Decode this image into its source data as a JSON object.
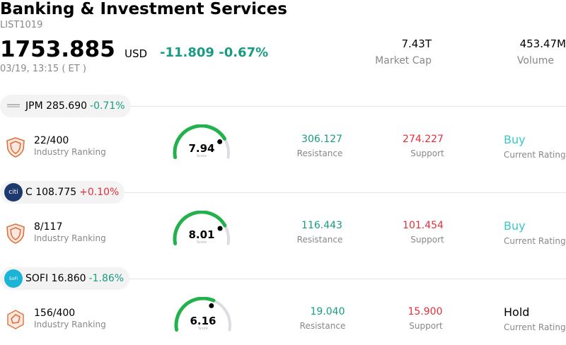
{
  "header": {
    "title": "Banking & Investment Services",
    "code": "LIST1019",
    "price": "1753.885",
    "currency": "USD",
    "change": "-11.809",
    "change_pct": "-0.67%",
    "datetime": "03/19, 13:15  ( ET )",
    "market_cap_value": "7.43T",
    "market_cap_label": "Market Cap",
    "volume_value": "453.47M",
    "volume_label": "Volume"
  },
  "colors": {
    "down": "#1a9b82",
    "up": "#e0303c",
    "buy": "#3cc6c6",
    "gauge_green": "#22b14c",
    "gauge_track": "#dcdde3"
  },
  "stocks": [
    {
      "ticker": "JPM",
      "price": "285.690",
      "change": "-0.71%",
      "logo_icon": "jpmorgan-logo-icon",
      "rank": "22/400",
      "rank_label": "Industry Ranking",
      "score": "7.94",
      "score_value": 7.94,
      "score_label": "Score",
      "resistance": "306.127",
      "resistance_label": "Resistance",
      "support": "274.227",
      "support_label": "Support",
      "rating": "Buy",
      "rating_label": "Current Rating"
    },
    {
      "ticker": "C",
      "price": "108.775",
      "change": "+0.10%",
      "logo_icon": "citi-logo-icon",
      "logo_text": "citi",
      "rank": "8/117",
      "rank_label": "Industry Ranking",
      "score": "8.01",
      "score_value": 8.01,
      "score_label": "Score",
      "resistance": "116.443",
      "resistance_label": "Resistance",
      "support": "101.454",
      "support_label": "Support",
      "rating": "Buy",
      "rating_label": "Current Rating"
    },
    {
      "ticker": "SOFI",
      "price": "16.860",
      "change": "-1.86%",
      "logo_icon": "sofi-logo-icon",
      "logo_text": "SoFi",
      "rank": "156/400",
      "rank_label": "Industry Ranking",
      "score": "6.16",
      "score_value": 6.16,
      "score_label": "Score",
      "resistance": "19.040",
      "resistance_label": "Resistance",
      "support": "15.900",
      "support_label": "Support",
      "rating": "Hold",
      "rating_label": "Current Rating"
    }
  ]
}
